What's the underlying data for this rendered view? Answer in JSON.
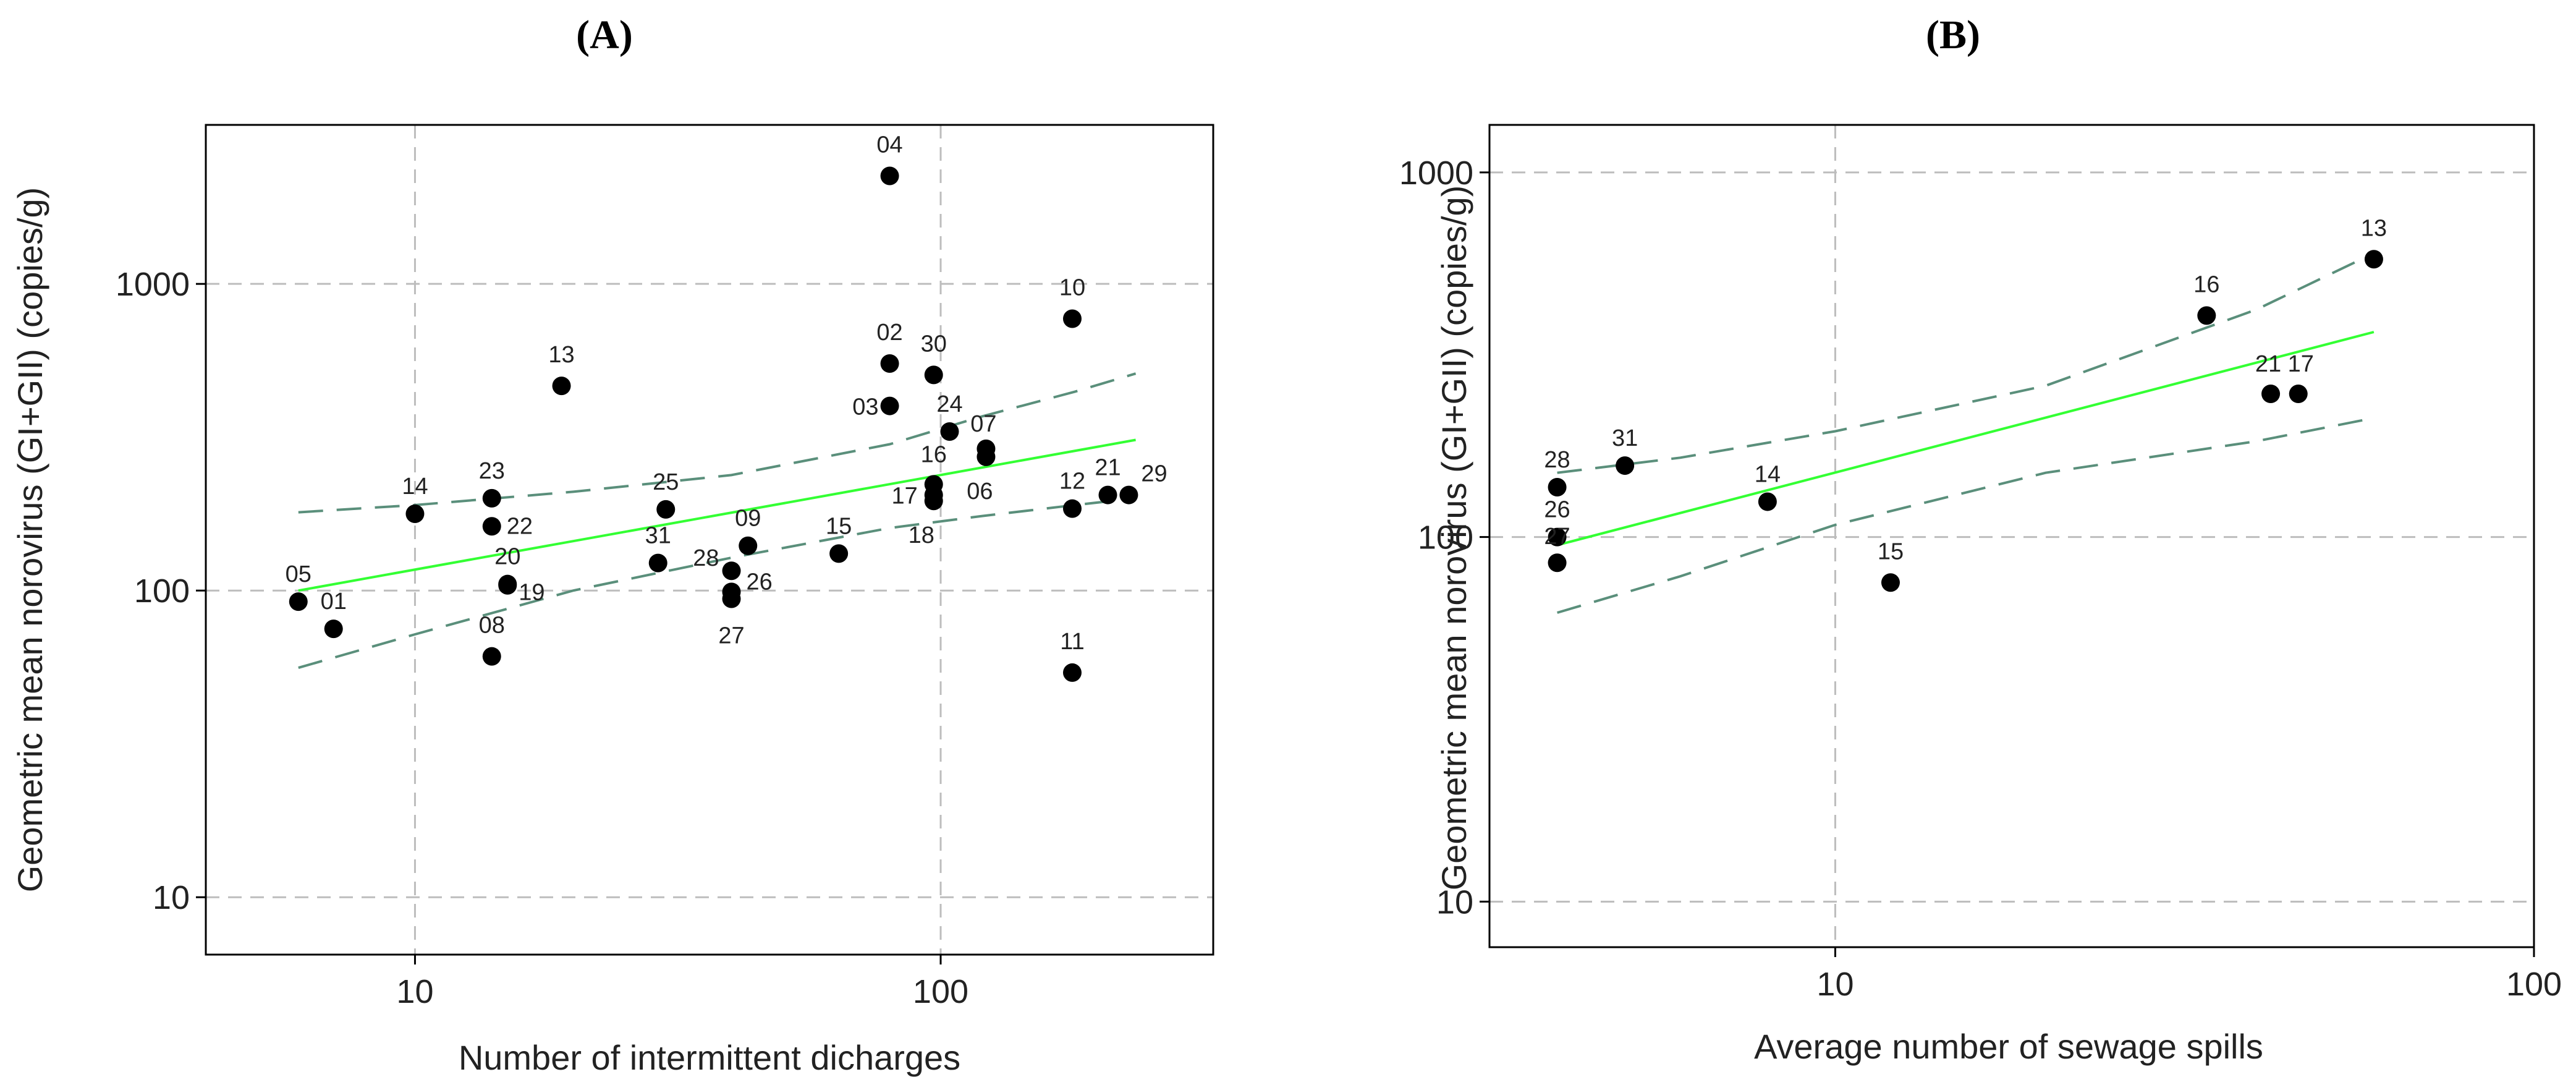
{
  "colors": {
    "fit_line": "#33ff33",
    "ci_line": "#5a8f7b",
    "grid": "#bdbdbd",
    "points": "#000000"
  },
  "chart_data": [
    {
      "type": "scatter",
      "panel_label": "(A)",
      "panel_letter": "A",
      "xlabel": "Number of intermittent dicharges",
      "ylabel": "Geometric mean norovirus (GI+GII) (copies/g)",
      "xscale": "log",
      "yscale": "log",
      "xlim": [
        4,
        330
      ],
      "ylim": [
        6.5,
        3300
      ],
      "xticks": [
        10,
        100
      ],
      "xtick_labels": [
        "10",
        "100"
      ],
      "yticks": [
        10,
        100,
        1000
      ],
      "ytick_labels": [
        "10",
        "100",
        "1000"
      ],
      "grid": true,
      "points": [
        {
          "label": "05",
          "x": 6,
          "y": 92
        },
        {
          "label": "01",
          "x": 7,
          "y": 75
        },
        {
          "label": "14",
          "x": 10,
          "y": 178
        },
        {
          "label": "08",
          "x": 14,
          "y": 61
        },
        {
          "label": "23",
          "x": 14,
          "y": 200
        },
        {
          "label": "22",
          "x": 14,
          "y": 162
        },
        {
          "label": "20",
          "x": 15,
          "y": 105
        },
        {
          "label": "19",
          "x": 15,
          "y": 104
        },
        {
          "label": "13",
          "x": 19,
          "y": 465
        },
        {
          "label": "31",
          "x": 29,
          "y": 123
        },
        {
          "label": "25",
          "x": 30,
          "y": 184
        },
        {
          "label": "28",
          "x": 40,
          "y": 116
        },
        {
          "label": "26",
          "x": 40,
          "y": 99
        },
        {
          "label": "27",
          "x": 40,
          "y": 94
        },
        {
          "label": "09",
          "x": 43,
          "y": 140
        },
        {
          "label": "15",
          "x": 64,
          "y": 132
        },
        {
          "label": "04",
          "x": 80,
          "y": 2250
        },
        {
          "label": "02",
          "x": 80,
          "y": 550
        },
        {
          "label": "03",
          "x": 80,
          "y": 400
        },
        {
          "label": "30",
          "x": 97,
          "y": 505
        },
        {
          "label": "16",
          "x": 97,
          "y": 222
        },
        {
          "label": "17",
          "x": 97,
          "y": 205
        },
        {
          "label": "18",
          "x": 97,
          "y": 196
        },
        {
          "label": "24",
          "x": 104,
          "y": 330
        },
        {
          "label": "07",
          "x": 122,
          "y": 290
        },
        {
          "label": "06",
          "x": 122,
          "y": 273
        },
        {
          "label": "10",
          "x": 178,
          "y": 770
        },
        {
          "label": "12",
          "x": 178,
          "y": 185
        },
        {
          "label": "11",
          "x": 178,
          "y": 54
        },
        {
          "label": "21",
          "x": 208,
          "y": 205
        },
        {
          "label": "29",
          "x": 228,
          "y": 205
        }
      ],
      "fit_line": {
        "x": [
          6,
          235
        ],
        "y": [
          100,
          310
        ]
      },
      "ci_upper": {
        "x": [
          6,
          10,
          20,
          40,
          80,
          120,
          180,
          235
        ],
        "y": [
          180,
          190,
          210,
          238,
          300,
          370,
          445,
          510
        ]
      },
      "ci_lower": {
        "x": [
          6,
          10,
          20,
          40,
          80,
          120,
          180,
          235
        ],
        "y": [
          56,
          72,
          100,
          128,
          160,
          175,
          190,
          200
        ]
      }
    },
    {
      "type": "scatter",
      "panel_label": "(B)",
      "panel_letter": "B",
      "xlabel": "Average number of sewage spills",
      "ylabel": "Geometric mean norovirus (GI+GII) (copies/g)",
      "xscale": "log",
      "yscale": "log",
      "xlim": [
        3.2,
        100
      ],
      "ylim": [
        7.5,
        1350
      ],
      "xticks": [
        10,
        100
      ],
      "xtick_labels": [
        "10",
        "100"
      ],
      "yticks": [
        10,
        100,
        1000
      ],
      "ytick_labels": [
        "10",
        "100",
        "1000"
      ],
      "grid": true,
      "points": [
        {
          "label": "28",
          "x": 4,
          "y": 137
        },
        {
          "label": "26",
          "x": 4,
          "y": 100
        },
        {
          "label": "27",
          "x": 4,
          "y": 85
        },
        {
          "label": "31",
          "x": 5,
          "y": 157
        },
        {
          "label": "14",
          "x": 8,
          "y": 125
        },
        {
          "label": "15",
          "x": 12,
          "y": 75
        },
        {
          "label": "16",
          "x": 34,
          "y": 405
        },
        {
          "label": "21",
          "x": 42,
          "y": 247
        },
        {
          "label": "17",
          "x": 46,
          "y": 247
        },
        {
          "label": "13",
          "x": 59,
          "y": 578
        }
      ],
      "fit_line": {
        "x": [
          4,
          59
        ],
        "y": [
          95,
          365
        ]
      },
      "ci_upper": {
        "x": [
          4,
          6,
          10,
          20,
          40,
          59
        ],
        "y": [
          150,
          165,
          195,
          260,
          420,
          600
        ]
      },
      "ci_lower": {
        "x": [
          4,
          6,
          10,
          20,
          40,
          59
        ],
        "y": [
          62,
          78,
          108,
          150,
          183,
          212
        ]
      }
    }
  ]
}
